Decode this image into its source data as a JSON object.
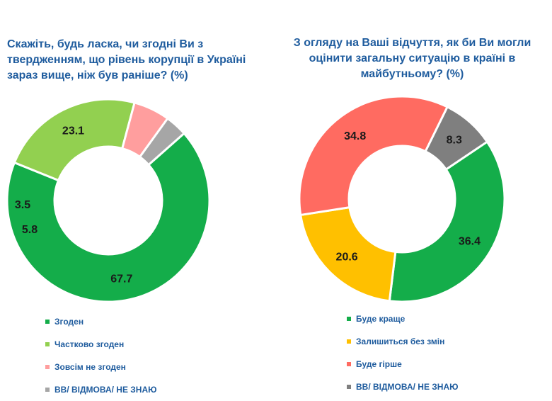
{
  "chart_data": [
    {
      "type": "pie",
      "variant": "donut",
      "title": "Скажіть, будь ласка, чи згодні Ви з твердженням, що рівень корупції в Україні зараз вище, ніж був раніше? (%)",
      "categories": [
        "Згоден",
        "Частково згоден",
        "Зовсім не згоден",
        "ВВ/ ВІДМОВА/ НЕ ЗНАЮ"
      ],
      "values": [
        67.7,
        23.1,
        5.8,
        3.5
      ],
      "labels": [
        "67.7",
        "23.1",
        "5.8",
        "3.5"
      ],
      "colors": [
        "#14ad4a",
        "#92d050",
        "#ff9e9e",
        "#a6a6a6"
      ],
      "legend_position": "bottom"
    },
    {
      "type": "pie",
      "variant": "donut",
      "title": "З огляду на Ваші відчуття, як би Ви могли оцінити загальну ситуацію в країні в майбутньому? (%)",
      "categories": [
        "Буде краще",
        "Залишиться без змін",
        "Буде гірше",
        "ВВ/ ВІДМОВА/ НЕ ЗНАЮ"
      ],
      "values": [
        36.4,
        20.6,
        34.8,
        8.3
      ],
      "labels": [
        "36.4",
        "20.6",
        "34.8",
        "8.3"
      ],
      "colors": [
        "#14ad4a",
        "#ffc000",
        "#ff6b61",
        "#7f7f7f"
      ],
      "legend_position": "bottom"
    }
  ]
}
